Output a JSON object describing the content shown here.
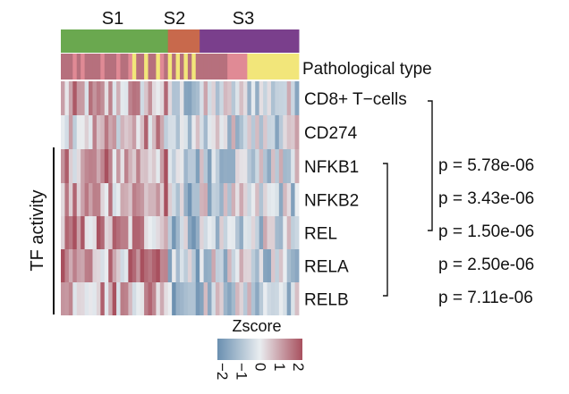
{
  "chart_data": {
    "type": "heatmap",
    "subtypes": [
      {
        "label": "S1",
        "color": "#6aa84f"
      },
      {
        "label": "S2",
        "color": "#c8694c"
      },
      {
        "label": "S3",
        "color": "#7a3f8c"
      }
    ],
    "annotation_label": "Pathological type",
    "pathological_colors": [
      "#b6707d",
      "#e08a95",
      "#f2e67a"
    ],
    "rows": [
      {
        "label": "CD8+ T−cells",
        "group": "immune"
      },
      {
        "label": "CD274",
        "group": "immune"
      },
      {
        "label": "NFKB1",
        "group": "tf"
      },
      {
        "label": "NFKB2",
        "group": "tf"
      },
      {
        "label": "REL",
        "group": "tf"
      },
      {
        "label": "RELA",
        "group": "tf"
      },
      {
        "label": "RELB",
        "group": "tf"
      }
    ],
    "group_label": "TF activity",
    "p_values": [
      "p = 5.78e-06",
      "p = 3.43e-06",
      "p = 1.50e-06",
      "p = 2.50e-06",
      "p = 7.11e-06"
    ],
    "colorbar": {
      "title": "Zscore",
      "ticks": [
        "−2",
        "−1",
        "0",
        "1",
        "2"
      ],
      "range": [
        -2,
        2
      ],
      "low_color": "#6a8fb0",
      "mid_color": "#e9edf0",
      "high_color": "#a8505e"
    },
    "legend_placement": "bottom"
  }
}
